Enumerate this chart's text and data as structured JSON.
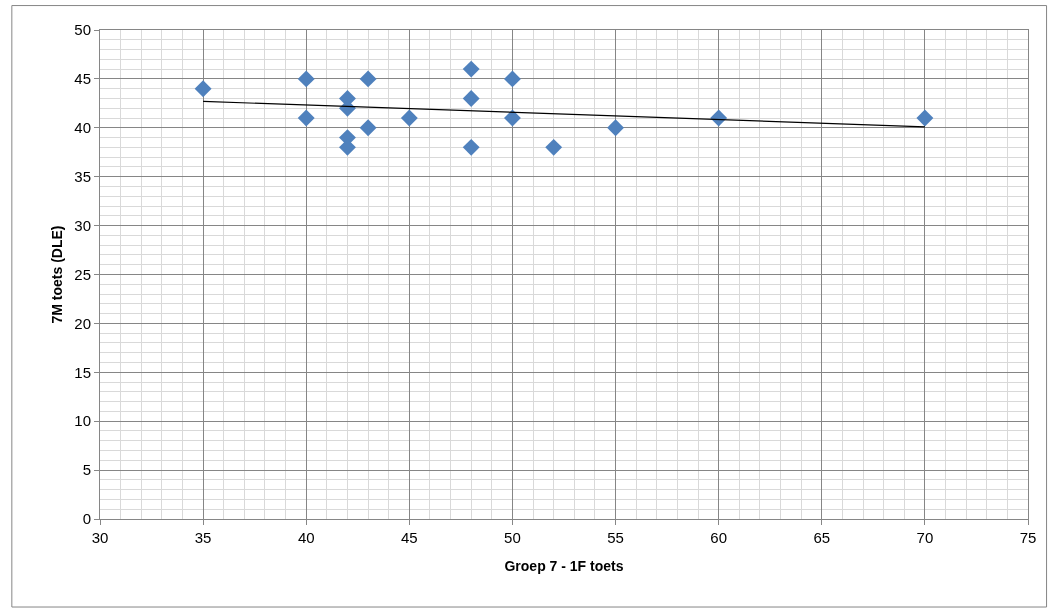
{
  "chart_data": {
    "type": "scatter",
    "xlabel": "Groep 7 - 1F toets",
    "ylabel": "7M toets (DLE)",
    "marker": "diamond",
    "grid": true,
    "xlim": [
      30,
      75
    ],
    "xticks": [
      30,
      35,
      40,
      45,
      50,
      55,
      60,
      65,
      70,
      75
    ],
    "ylim": [
      0,
      50
    ],
    "yticks": [
      0,
      5,
      10,
      15,
      20,
      25,
      30,
      35,
      40,
      45,
      50
    ],
    "series": [
      {
        "color": "#4f81bd",
        "x": [
          35,
          40,
          40,
          42,
          42,
          42,
          42,
          43,
          43,
          45,
          48,
          48,
          48,
          50,
          50,
          52,
          55,
          60,
          70
        ],
        "values": [
          44,
          45,
          41,
          43,
          42,
          39,
          38,
          45,
          40,
          41,
          46,
          43,
          38,
          45,
          41,
          38,
          40,
          41,
          41
        ]
      },
      {
        "type": "line",
        "color": "#000000",
        "marker": "none",
        "line_style": "solid",
        "x": [
          35,
          70
        ],
        "values": [
          42.7,
          40.1
        ]
      }
    ]
  }
}
